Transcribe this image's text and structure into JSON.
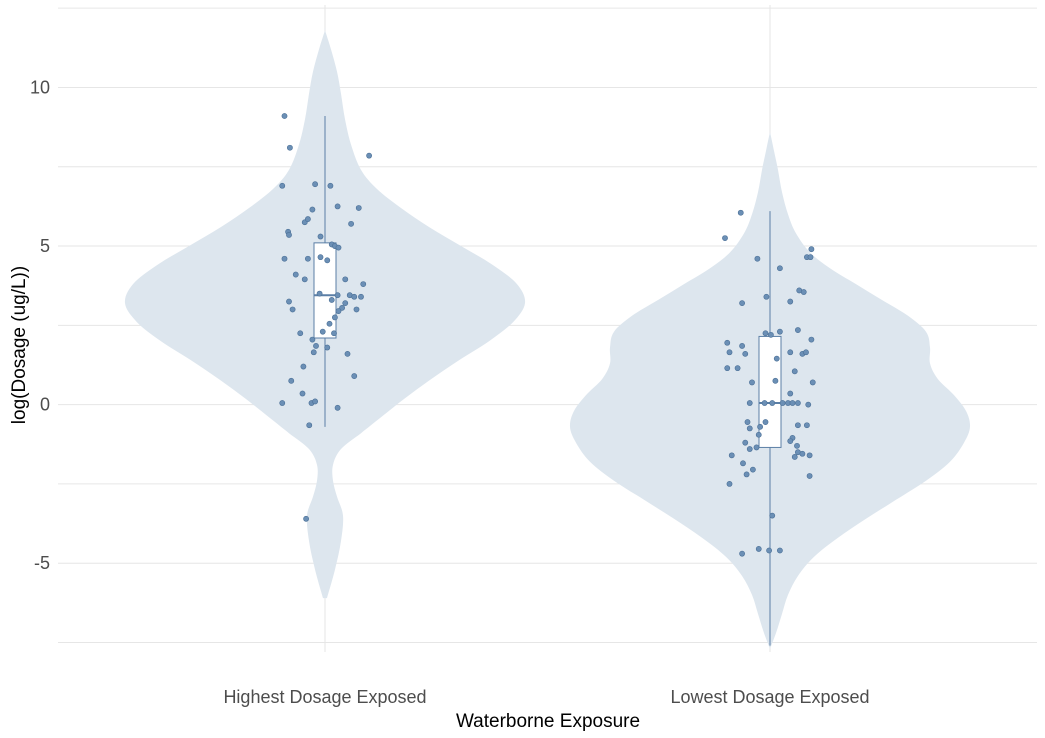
{
  "chart_data": {
    "type": "violin",
    "title": "",
    "xlabel": "Waterborne Exposure",
    "ylabel": "log(Dosage (ug/L))",
    "ylim": [
      -7.8,
      12.6
    ],
    "yticks": [
      -5,
      0,
      5,
      10
    ],
    "ytick_labels": [
      "-5",
      "0",
      "5",
      "10"
    ],
    "grid": true,
    "categories": [
      "Highest Dosage Exposed",
      "Lowest Dosage Exposed"
    ],
    "colors": {
      "violin_fill": "#dde6ee",
      "box_stroke": "#5b7fa6",
      "point_fill": "#6b8fb5",
      "point_stroke": "#4a6f96",
      "grid": "#e6e6e6"
    },
    "groups": [
      {
        "name": "Highest Dosage Exposed",
        "violin_range": [
          -6.1,
          11.8
        ],
        "density": [
          [
            -6.1,
            0.01
          ],
          [
            -5.2,
            0.05
          ],
          [
            -4.3,
            0.08
          ],
          [
            -3.5,
            0.09
          ],
          [
            -2.9,
            0.06
          ],
          [
            -2.4,
            0.04
          ],
          [
            -1.9,
            0.04
          ],
          [
            -1.4,
            0.08
          ],
          [
            -0.9,
            0.18
          ],
          [
            -0.4,
            0.28
          ],
          [
            0.2,
            0.4
          ],
          [
            0.8,
            0.53
          ],
          [
            1.4,
            0.67
          ],
          [
            2.0,
            0.82
          ],
          [
            2.6,
            0.94
          ],
          [
            3.2,
            1.0
          ],
          [
            3.8,
            0.96
          ],
          [
            4.4,
            0.84
          ],
          [
            5.0,
            0.68
          ],
          [
            5.6,
            0.52
          ],
          [
            6.2,
            0.38
          ],
          [
            6.8,
            0.26
          ],
          [
            7.4,
            0.18
          ],
          [
            8.2,
            0.13
          ],
          [
            9.0,
            0.1
          ],
          [
            9.8,
            0.08
          ],
          [
            10.5,
            0.06
          ],
          [
            11.2,
            0.03
          ],
          [
            11.8,
            0.0
          ]
        ],
        "box": {
          "whisker_low": -0.7,
          "q1": 2.1,
          "median": 3.45,
          "q3": 5.1,
          "whisker_high": 9.1
        },
        "points": [
          {
            "x": -0.9,
            "y": 9.1
          },
          {
            "x": -0.78,
            "y": 8.1
          },
          {
            "x": 0.98,
            "y": 7.85
          },
          {
            "x": -0.95,
            "y": 6.9
          },
          {
            "x": -0.22,
            "y": 6.95
          },
          {
            "x": 0.12,
            "y": 6.9
          },
          {
            "x": 0.28,
            "y": 6.25
          },
          {
            "x": -0.28,
            "y": 6.15
          },
          {
            "x": 0.75,
            "y": 6.2
          },
          {
            "x": -0.45,
            "y": 5.75
          },
          {
            "x": -0.38,
            "y": 5.85
          },
          {
            "x": 0.58,
            "y": 5.7
          },
          {
            "x": -0.82,
            "y": 5.45
          },
          {
            "x": -0.8,
            "y": 5.35
          },
          {
            "x": -0.1,
            "y": 5.3
          },
          {
            "x": 0.15,
            "y": 5.05
          },
          {
            "x": 0.22,
            "y": 5.0
          },
          {
            "x": 0.3,
            "y": 4.95
          },
          {
            "x": -0.9,
            "y": 4.6
          },
          {
            "x": -0.38,
            "y": 4.6
          },
          {
            "x": -0.1,
            "y": 4.65
          },
          {
            "x": 0.05,
            "y": 4.55
          },
          {
            "x": -0.65,
            "y": 4.1
          },
          {
            "x": -0.45,
            "y": 3.95
          },
          {
            "x": 0.45,
            "y": 3.95
          },
          {
            "x": 0.85,
            "y": 3.8
          },
          {
            "x": -0.12,
            "y": 3.5
          },
          {
            "x": 0.28,
            "y": 3.45
          },
          {
            "x": 0.55,
            "y": 3.45
          },
          {
            "x": 0.65,
            "y": 3.4
          },
          {
            "x": 0.8,
            "y": 3.4
          },
          {
            "x": -0.8,
            "y": 3.25
          },
          {
            "x": 0.15,
            "y": 3.3
          },
          {
            "x": 0.45,
            "y": 3.2
          },
          {
            "x": -0.72,
            "y": 3.0
          },
          {
            "x": 0.38,
            "y": 3.05
          },
          {
            "x": 0.3,
            "y": 2.95
          },
          {
            "x": 0.7,
            "y": 3.0
          },
          {
            "x": 0.22,
            "y": 2.75
          },
          {
            "x": 0.1,
            "y": 2.55
          },
          {
            "x": -0.55,
            "y": 2.25
          },
          {
            "x": -0.05,
            "y": 2.3
          },
          {
            "x": 0.2,
            "y": 2.25
          },
          {
            "x": -0.28,
            "y": 2.05
          },
          {
            "x": -0.2,
            "y": 1.85
          },
          {
            "x": -0.25,
            "y": 1.65
          },
          {
            "x": 0.05,
            "y": 1.8
          },
          {
            "x": 0.5,
            "y": 1.6
          },
          {
            "x": -0.48,
            "y": 1.2
          },
          {
            "x": 0.65,
            "y": 0.9
          },
          {
            "x": -0.75,
            "y": 0.75
          },
          {
            "x": -0.5,
            "y": 0.35
          },
          {
            "x": -0.95,
            "y": 0.05
          },
          {
            "x": -0.3,
            "y": 0.05
          },
          {
            "x": -0.22,
            "y": 0.1
          },
          {
            "x": 0.28,
            "y": -0.1
          },
          {
            "x": -0.35,
            "y": -0.65
          },
          {
            "x": -0.42,
            "y": -3.6
          }
        ]
      },
      {
        "name": "Lowest Dosage Exposed",
        "violin_range": [
          -7.7,
          8.6
        ],
        "density": [
          [
            -7.7,
            0.0
          ],
          [
            -7.2,
            0.03
          ],
          [
            -6.6,
            0.06
          ],
          [
            -6.0,
            0.09
          ],
          [
            -5.4,
            0.14
          ],
          [
            -4.8,
            0.22
          ],
          [
            -4.2,
            0.34
          ],
          [
            -3.6,
            0.48
          ],
          [
            -3.0,
            0.63
          ],
          [
            -2.4,
            0.78
          ],
          [
            -1.8,
            0.9
          ],
          [
            -1.2,
            0.97
          ],
          [
            -0.7,
            1.0
          ],
          [
            -0.2,
            0.98
          ],
          [
            0.3,
            0.92
          ],
          [
            0.8,
            0.84
          ],
          [
            1.3,
            0.8
          ],
          [
            1.8,
            0.8
          ],
          [
            2.3,
            0.78
          ],
          [
            2.8,
            0.69
          ],
          [
            3.3,
            0.56
          ],
          [
            3.8,
            0.43
          ],
          [
            4.3,
            0.3
          ],
          [
            4.8,
            0.2
          ],
          [
            5.4,
            0.13
          ],
          [
            6.0,
            0.09
          ],
          [
            6.7,
            0.06
          ],
          [
            7.4,
            0.04
          ],
          [
            8.0,
            0.02
          ],
          [
            8.6,
            0.0
          ]
        ],
        "box": {
          "whisker_low": -7.6,
          "q1": -1.35,
          "median": 0.05,
          "q3": 2.15,
          "whisker_high": 6.1
        },
        "points": [
          {
            "x": -0.65,
            "y": 6.05
          },
          {
            "x": -1.0,
            "y": 5.25
          },
          {
            "x": 0.92,
            "y": 4.9
          },
          {
            "x": 0.82,
            "y": 4.65
          },
          {
            "x": 0.9,
            "y": 4.65
          },
          {
            "x": -0.28,
            "y": 4.6
          },
          {
            "x": 0.22,
            "y": 4.3
          },
          {
            "x": 0.65,
            "y": 3.6
          },
          {
            "x": 0.75,
            "y": 3.55
          },
          {
            "x": -0.08,
            "y": 3.4
          },
          {
            "x": 0.45,
            "y": 3.25
          },
          {
            "x": -0.62,
            "y": 3.2
          },
          {
            "x": 0.62,
            "y": 2.35
          },
          {
            "x": -0.1,
            "y": 2.25
          },
          {
            "x": 0.02,
            "y": 2.2
          },
          {
            "x": 0.22,
            "y": 2.3
          },
          {
            "x": 0.92,
            "y": 2.05
          },
          {
            "x": -0.95,
            "y": 1.95
          },
          {
            "x": -0.62,
            "y": 1.85
          },
          {
            "x": -0.9,
            "y": 1.65
          },
          {
            "x": -0.55,
            "y": 1.6
          },
          {
            "x": 0.45,
            "y": 1.65
          },
          {
            "x": 0.72,
            "y": 1.6
          },
          {
            "x": 0.8,
            "y": 1.65
          },
          {
            "x": 0.15,
            "y": 1.45
          },
          {
            "x": -0.95,
            "y": 1.15
          },
          {
            "x": -0.72,
            "y": 1.15
          },
          {
            "x": 0.55,
            "y": 1.05
          },
          {
            "x": -0.4,
            "y": 0.7
          },
          {
            "x": 0.12,
            "y": 0.75
          },
          {
            "x": 0.95,
            "y": 0.7
          },
          {
            "x": 0.45,
            "y": 0.35
          },
          {
            "x": -0.45,
            "y": 0.05
          },
          {
            "x": -0.12,
            "y": 0.05
          },
          {
            "x": 0.05,
            "y": 0.05
          },
          {
            "x": 0.28,
            "y": 0.05
          },
          {
            "x": 0.4,
            "y": 0.05
          },
          {
            "x": 0.5,
            "y": 0.05
          },
          {
            "x": 0.62,
            "y": 0.05
          },
          {
            "x": 0.85,
            "y": 0.0
          },
          {
            "x": -0.5,
            "y": -0.55
          },
          {
            "x": -0.1,
            "y": -0.55
          },
          {
            "x": -0.22,
            "y": -0.7
          },
          {
            "x": -0.45,
            "y": -0.75
          },
          {
            "x": 0.62,
            "y": -0.65
          },
          {
            "x": 0.82,
            "y": -0.65
          },
          {
            "x": -0.25,
            "y": -0.95
          },
          {
            "x": 0.5,
            "y": -1.05
          },
          {
            "x": -0.55,
            "y": -1.2
          },
          {
            "x": 0.45,
            "y": -1.15
          },
          {
            "x": -0.3,
            "y": -1.35
          },
          {
            "x": 0.6,
            "y": -1.3
          },
          {
            "x": -0.45,
            "y": -1.4
          },
          {
            "x": 0.62,
            "y": -1.5
          },
          {
            "x": 0.72,
            "y": -1.55
          },
          {
            "x": -0.85,
            "y": -1.6
          },
          {
            "x": 0.55,
            "y": -1.65
          },
          {
            "x": 0.88,
            "y": -1.6
          },
          {
            "x": -0.6,
            "y": -1.85
          },
          {
            "x": -0.38,
            "y": -2.05
          },
          {
            "x": -0.52,
            "y": -2.2
          },
          {
            "x": 0.88,
            "y": -2.25
          },
          {
            "x": -0.9,
            "y": -2.5
          },
          {
            "x": 0.05,
            "y": -3.5
          },
          {
            "x": -0.62,
            "y": -4.7
          },
          {
            "x": -0.25,
            "y": -4.55
          },
          {
            "x": -0.02,
            "y": -4.6
          },
          {
            "x": 0.22,
            "y": -4.6
          }
        ]
      }
    ]
  }
}
